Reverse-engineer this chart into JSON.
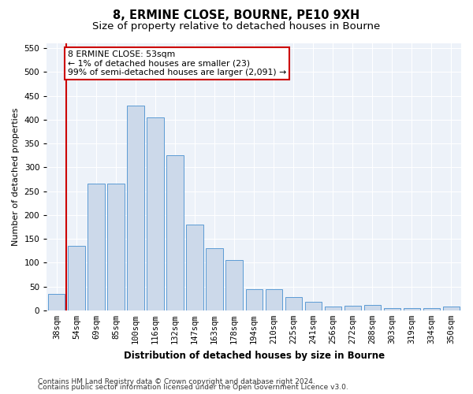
{
  "title1": "8, ERMINE CLOSE, BOURNE, PE10 9XH",
  "title2": "Size of property relative to detached houses in Bourne",
  "xlabel": "Distribution of detached houses by size in Bourne",
  "ylabel": "Number of detached properties",
  "categories": [
    "38sqm",
    "54sqm",
    "69sqm",
    "85sqm",
    "100sqm",
    "116sqm",
    "132sqm",
    "147sqm",
    "163sqm",
    "178sqm",
    "194sqm",
    "210sqm",
    "225sqm",
    "241sqm",
    "256sqm",
    "272sqm",
    "288sqm",
    "303sqm",
    "319sqm",
    "334sqm",
    "350sqm"
  ],
  "values": [
    35,
    135,
    265,
    265,
    430,
    405,
    325,
    180,
    130,
    105,
    45,
    45,
    28,
    18,
    8,
    10,
    12,
    5,
    5,
    5,
    8
  ],
  "bar_color": "#ccd9ea",
  "bar_edge_color": "#5b9bd5",
  "vline_color": "#cc0000",
  "annotation_line1": "8 ERMINE CLOSE: 53sqm",
  "annotation_line2": "← 1% of detached houses are smaller (23)",
  "annotation_line3": "99% of semi-detached houses are larger (2,091) →",
  "annotation_box_color": "#cc0000",
  "ylim": [
    0,
    560
  ],
  "yticks": [
    0,
    50,
    100,
    150,
    200,
    250,
    300,
    350,
    400,
    450,
    500,
    550
  ],
  "bg_color": "#edf2f9",
  "footer1": "Contains HM Land Registry data © Crown copyright and database right 2024.",
  "footer2": "Contains public sector information licensed under the Open Government Licence v3.0.",
  "title1_fontsize": 10.5,
  "title2_fontsize": 9.5,
  "xlabel_fontsize": 8.5,
  "ylabel_fontsize": 8,
  "tick_fontsize": 7.5,
  "annotation_fontsize": 7.8,
  "footer_fontsize": 6.5
}
